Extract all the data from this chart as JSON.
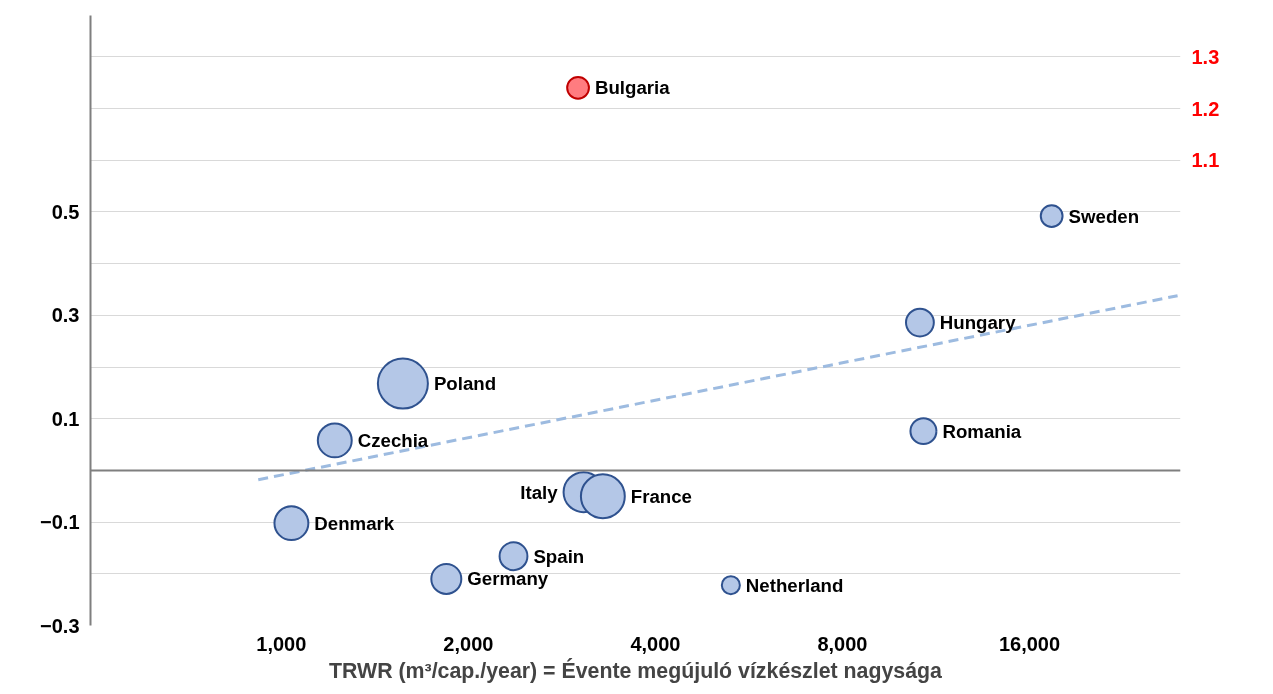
{
  "chart_data": {
    "type": "bubble",
    "xlabel": "TRWR (m³/cap./year) = Évente megújuló vízkészlet nagysága",
    "log": "x",
    "xlim": [
      493,
      28000
    ],
    "xticks": [
      {
        "value": 1000,
        "label": "1,000"
      },
      {
        "value": 2000,
        "label": "2,000"
      },
      {
        "value": 4000,
        "label": "4,000"
      },
      {
        "value": 8000,
        "label": "8,000"
      },
      {
        "value": 16000,
        "label": "16,000"
      }
    ],
    "ylim": [
      -0.3,
      0.88
    ],
    "yticks": [
      -0.3,
      {
        "value": -0.2,
        "label": null
      },
      -0.1,
      {
        "value": 0,
        "label": null
      },
      0.1,
      {
        "value": 0.2,
        "label": null
      },
      0.3,
      {
        "value": 0.4,
        "label": null
      },
      0.5,
      {
        "value": 0.6,
        "label": null
      },
      {
        "value": 0.7,
        "label": null
      },
      {
        "value": 0.8,
        "label": null
      }
    ],
    "y2lim": [
      0.2,
      1.38
    ],
    "y2ticks": [
      1.1,
      1.2,
      1.3
    ],
    "grid": "y",
    "ref_lines": [
      {
        "axis": "y",
        "value": 0,
        "color": "#7f7f7f"
      }
    ],
    "series": [
      {
        "name": "Czechia",
        "color": "#b4c7e7",
        "x": [
          1219
        ],
        "values": [
          0.058
        ],
        "sizes": [
          0.46
        ]
      },
      {
        "name": "Poland",
        "color": "#b4c7e7",
        "x": [
          1569
        ],
        "values": [
          0.168
        ],
        "sizes": [
          1
        ]
      },
      {
        "name": "Denmark",
        "color": "#b4c7e7",
        "x": [
          1038
        ],
        "values": [
          -0.102
        ],
        "sizes": [
          0.46
        ]
      },
      {
        "name": "Germany",
        "color": "#b4c7e7",
        "x": [
          1843
        ],
        "values": [
          -0.21
        ],
        "sizes": [
          0.36
        ]
      },
      {
        "name": "Spain",
        "color": "#b4c7e7",
        "x": [
          2364
        ],
        "values": [
          -0.166
        ],
        "sizes": [
          0.31
        ]
      },
      {
        "name": "Italy",
        "color": "#b4c7e7",
        "x": [
          3065
        ],
        "values": [
          -0.042
        ],
        "sizes": [
          0.64
        ]
      },
      {
        "name": "France",
        "color": "#b4c7e7",
        "x": [
          3292
        ],
        "values": [
          -0.05
        ],
        "sizes": [
          0.77
        ]
      },
      {
        "name": "Netherland",
        "color": "#b4c7e7",
        "x": [
          5290
        ],
        "values": [
          -0.222
        ],
        "sizes": [
          0.13
        ]
      },
      {
        "name": "Hungary",
        "color": "#b4c7e7",
        "x": [
          10660
        ],
        "values": [
          0.286
        ],
        "sizes": [
          0.31
        ]
      },
      {
        "name": "Romania",
        "color": "#b4c7e7",
        "x": [
          10800
        ],
        "values": [
          0.076
        ],
        "sizes": [
          0.27
        ]
      },
      {
        "name": "Sweden",
        "color": "#b4c7e7",
        "x": [
          17370
        ],
        "values": [
          0.492
        ],
        "sizes": [
          0.19
        ]
      },
      {
        "name": "Bulgaria",
        "color": "#ff7c80",
        "axis": "y2",
        "x": [
          3003
        ],
        "values": [
          1.24
        ],
        "sizes": [
          0.19
        ]
      },
      {
        "type": "line",
        "color": "#9dbbe0",
        "line_style": "dashed",
        "x": [
          918,
          27700
        ],
        "values": [
          -0.018,
          0.338
        ]
      }
    ]
  }
}
